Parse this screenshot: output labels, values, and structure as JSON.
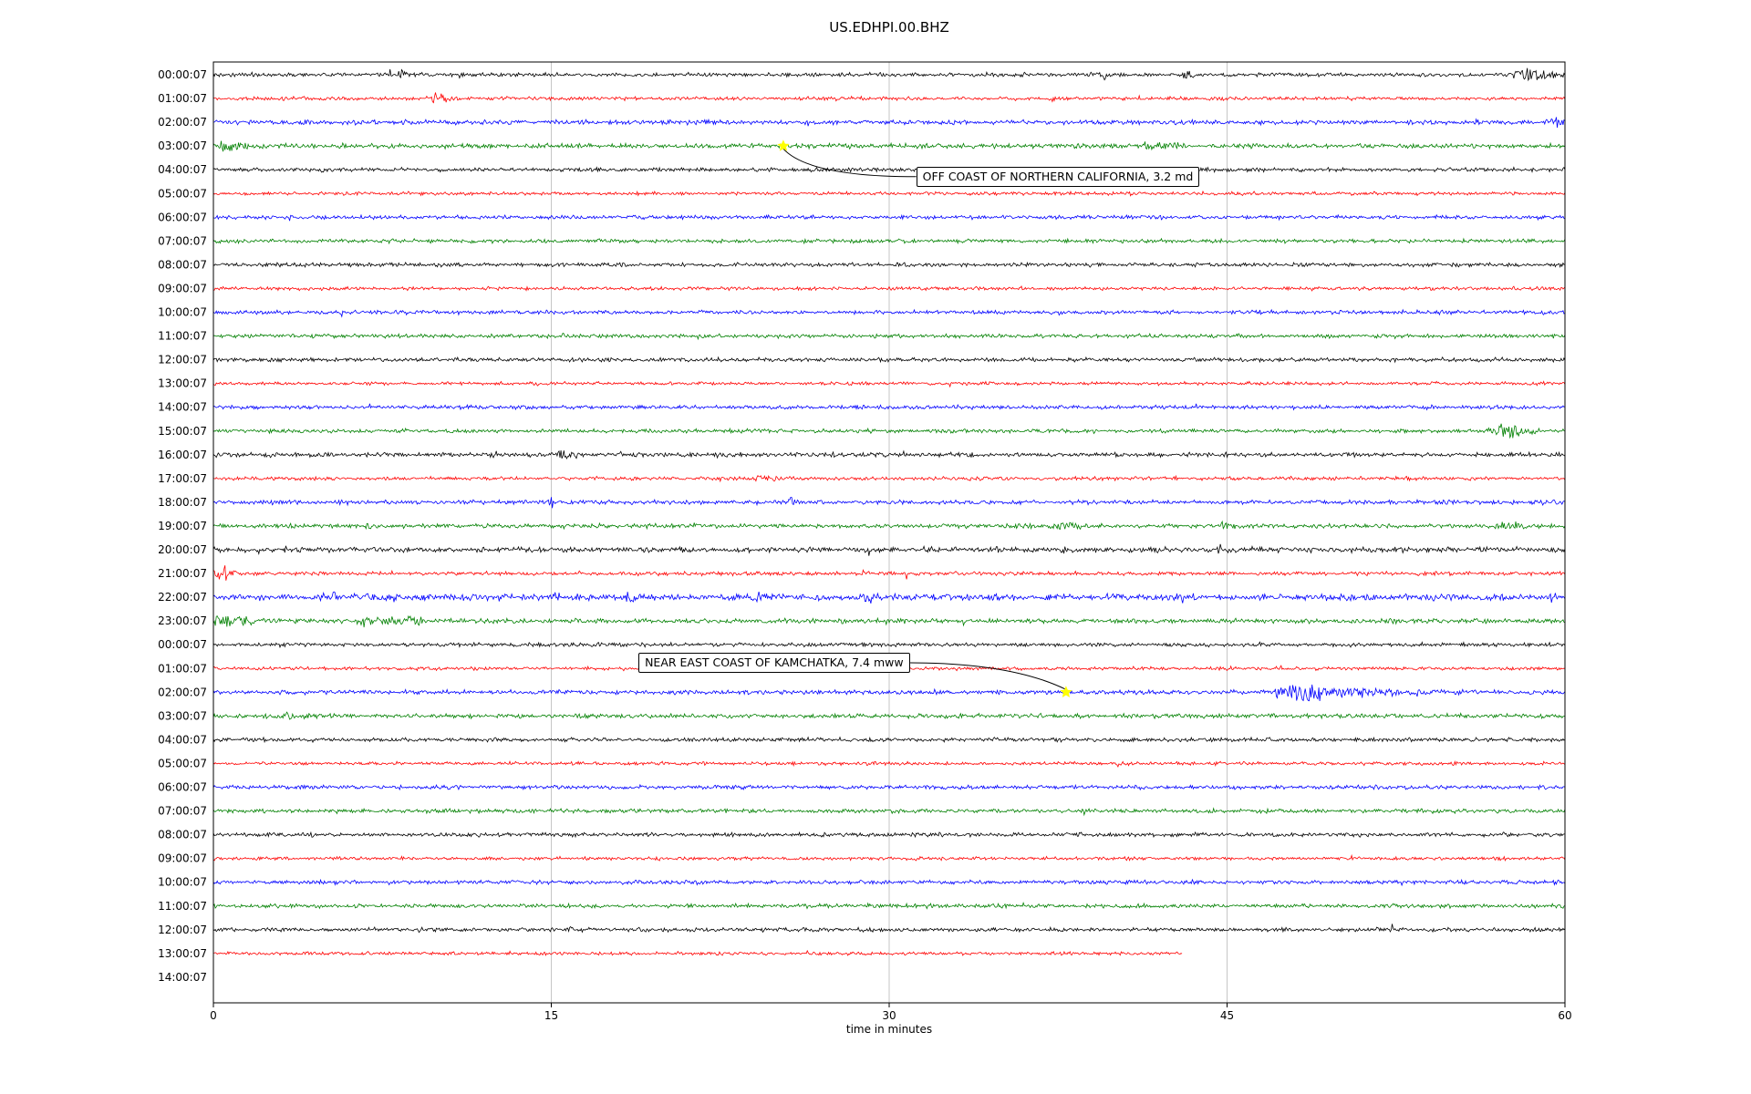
{
  "chart_data": {
    "type": "line",
    "title": "US.EDHPI.00.BHZ",
    "xlabel": "time in minutes",
    "xlim": [
      0,
      60
    ],
    "xticks": [
      0,
      15,
      30,
      45,
      60
    ],
    "grid": "vertical",
    "legend": "none",
    "colors": {
      "black": "#000000",
      "red": "#ff0000",
      "blue": "#0000ff",
      "green": "#008000",
      "grid": "#b8b8b8",
      "marker": "#ffff00",
      "leader": "#000000"
    },
    "rows": [
      {
        "label": "00:00:07",
        "color": "black",
        "amp": 1.0,
        "spikes": [
          [
            8.4,
            6,
            0.12
          ],
          [
            11.0,
            5,
            0.1
          ],
          [
            39.6,
            8,
            0.08
          ],
          [
            43.3,
            6,
            0.25
          ],
          [
            58.3,
            8,
            0.45
          ],
          [
            59.2,
            6,
            0.25
          ]
        ]
      },
      {
        "label": "01:00:07",
        "color": "red",
        "amp": 0.9,
        "spikes": [
          [
            9.9,
            8,
            0.25
          ],
          [
            10.5,
            5,
            0.15
          ],
          [
            37.3,
            4,
            0.08
          ]
        ]
      },
      {
        "label": "02:00:07",
        "color": "blue",
        "amp": 1.1,
        "spikes": [
          [
            21.9,
            4,
            0.15
          ],
          [
            26.4,
            4,
            0.12
          ],
          [
            59.6,
            6,
            0.3
          ]
        ]
      },
      {
        "label": "03:00:07",
        "color": "green",
        "amp": 1.2,
        "spikes": [
          [
            0.4,
            5,
            0.5
          ],
          [
            1.3,
            4,
            0.5
          ],
          [
            12.6,
            4,
            0.08
          ],
          [
            41.5,
            4,
            0.35
          ],
          [
            42.4,
            5,
            0.35
          ]
        ]
      },
      {
        "label": "04:00:07",
        "color": "black",
        "amp": 1.0,
        "spikes": [
          [
            2.0,
            3,
            0.1
          ]
        ]
      },
      {
        "label": "05:00:07",
        "color": "red",
        "amp": 0.85,
        "spikes": []
      },
      {
        "label": "06:00:07",
        "color": "blue",
        "amp": 1.0,
        "spikes": []
      },
      {
        "label": "07:00:07",
        "color": "green",
        "amp": 1.0,
        "spikes": []
      },
      {
        "label": "08:00:07",
        "color": "black",
        "amp": 1.0,
        "spikes": []
      },
      {
        "label": "09:00:07",
        "color": "red",
        "amp": 0.85,
        "spikes": []
      },
      {
        "label": "10:00:07",
        "color": "blue",
        "amp": 1.0,
        "spikes": []
      },
      {
        "label": "11:00:07",
        "color": "green",
        "amp": 1.0,
        "spikes": []
      },
      {
        "label": "12:00:07",
        "color": "black",
        "amp": 1.0,
        "spikes": []
      },
      {
        "label": "13:00:07",
        "color": "red",
        "amp": 0.85,
        "spikes": [
          [
            17.1,
            3,
            0.08
          ]
        ]
      },
      {
        "label": "14:00:07",
        "color": "blue",
        "amp": 1.0,
        "spikes": []
      },
      {
        "label": "15:00:07",
        "color": "green",
        "amp": 1.0,
        "spikes": [
          [
            57.2,
            8,
            0.35
          ],
          [
            57.9,
            6,
            0.3
          ],
          [
            58.6,
            4,
            0.3
          ]
        ]
      },
      {
        "label": "16:00:07",
        "color": "black",
        "amp": 1.1,
        "spikes": [
          [
            12.5,
            4,
            0.1
          ],
          [
            15.6,
            6,
            0.2
          ],
          [
            16.1,
            5,
            0.12
          ],
          [
            18.1,
            4,
            0.1
          ],
          [
            22.4,
            5,
            0.12
          ],
          [
            27.6,
            4,
            0.1
          ],
          [
            30.6,
            3,
            0.1
          ],
          [
            33.6,
            4,
            0.1
          ],
          [
            34.4,
            3,
            0.1
          ]
        ]
      },
      {
        "label": "17:00:07",
        "color": "red",
        "amp": 0.9,
        "spikes": [
          [
            24.3,
            4,
            0.25
          ],
          [
            25.0,
            3,
            0.15
          ],
          [
            34.0,
            3,
            0.1
          ],
          [
            47.9,
            3,
            0.08
          ]
        ]
      },
      {
        "label": "18:00:07",
        "color": "blue",
        "amp": 1.1,
        "spikes": [
          [
            15.0,
            6,
            0.1
          ],
          [
            25.7,
            6,
            0.1
          ]
        ]
      },
      {
        "label": "19:00:07",
        "color": "green",
        "amp": 1.1,
        "spikes": [
          [
            2.1,
            3,
            0.08
          ],
          [
            6.8,
            3,
            0.08
          ],
          [
            37.8,
            4,
            0.7
          ],
          [
            44.9,
            4,
            0.3
          ],
          [
            45.4,
            3,
            0.2
          ],
          [
            57.3,
            5,
            0.25
          ],
          [
            57.9,
            4,
            0.2
          ]
        ]
      },
      {
        "label": "20:00:07",
        "color": "black",
        "amp": 1.3,
        "spikes": [
          [
            7.0,
            3,
            0.1
          ],
          [
            23.2,
            4,
            0.1
          ],
          [
            31.6,
            3,
            0.1
          ],
          [
            37.7,
            5,
            0.1
          ],
          [
            41.9,
            3,
            0.1
          ],
          [
            44.7,
            3,
            0.12
          ],
          [
            52.8,
            4,
            0.1
          ]
        ]
      },
      {
        "label": "21:00:07",
        "color": "red",
        "amp": 1.0,
        "spikes": [
          [
            0.35,
            8,
            0.4
          ],
          [
            33.0,
            3,
            0.1
          ]
        ]
      },
      {
        "label": "22:00:07",
        "color": "blue",
        "amp": 1.6,
        "spikes": [
          [
            5.3,
            5,
            0.3
          ],
          [
            8.0,
            3,
            0.2
          ],
          [
            15.3,
            5,
            0.2
          ],
          [
            18.6,
            5,
            0.2
          ],
          [
            24.3,
            3,
            0.2
          ],
          [
            29.0,
            4,
            0.3
          ],
          [
            53.0,
            2,
            4.0
          ],
          [
            59.4,
            4,
            0.3
          ]
        ]
      },
      {
        "label": "23:00:07",
        "color": "green",
        "amp": 1.2,
        "spikes": [
          [
            0.5,
            6,
            0.6
          ],
          [
            1.5,
            5,
            0.4
          ],
          [
            6.8,
            4,
            0.35
          ],
          [
            7.8,
            5,
            0.35
          ],
          [
            8.8,
            5,
            0.45
          ]
        ]
      },
      {
        "label": "00:00:07",
        "color": "black",
        "amp": 1.0,
        "spikes": []
      },
      {
        "label": "01:00:07",
        "color": "red",
        "amp": 0.85,
        "spikes": []
      },
      {
        "label": "02:00:07",
        "color": "blue",
        "amp": 1.1,
        "spikes": [
          [
            47.6,
            4,
            0.2
          ],
          [
            48.3,
            10,
            0.8
          ],
          [
            50.0,
            5,
            1.2
          ],
          [
            53.0,
            2.5,
            2.0
          ]
        ]
      },
      {
        "label": "03:00:07",
        "color": "green",
        "amp": 1.1,
        "spikes": [
          [
            4.0,
            2,
            1.0
          ]
        ]
      },
      {
        "label": "04:00:07",
        "color": "black",
        "amp": 1.0,
        "spikes": []
      },
      {
        "label": "05:00:07",
        "color": "red",
        "amp": 0.85,
        "spikes": []
      },
      {
        "label": "06:00:07",
        "color": "blue",
        "amp": 1.0,
        "spikes": []
      },
      {
        "label": "07:00:07",
        "color": "green",
        "amp": 1.0,
        "spikes": []
      },
      {
        "label": "08:00:07",
        "color": "black",
        "amp": 1.0,
        "spikes": []
      },
      {
        "label": "09:00:07",
        "color": "red",
        "amp": 0.85,
        "spikes": []
      },
      {
        "label": "10:00:07",
        "color": "blue",
        "amp": 1.0,
        "spikes": []
      },
      {
        "label": "11:00:07",
        "color": "green",
        "amp": 1.0,
        "spikes": []
      },
      {
        "label": "12:00:07",
        "color": "black",
        "amp": 1.0,
        "spikes": []
      },
      {
        "label": "13:00:07",
        "color": "red",
        "amp": 0.85,
        "spikes": [],
        "end": 43
      },
      {
        "label": "14:00:07",
        "color": "blue",
        "amp": 1.0,
        "spikes": [],
        "no_trace": true
      }
    ],
    "annotations": [
      {
        "text": "OFF COAST OF NORTHERN CALIFORNIA, 3.2 md",
        "row": 3,
        "t": 25.3,
        "box_t": 31.2,
        "box_row": 4.29
      },
      {
        "text": "NEAR EAST COAST OF KAMCHATKA, 7.4 mww",
        "row": 26,
        "t": 37.85,
        "box_t": 18.87,
        "box_row": 24.76
      }
    ]
  }
}
